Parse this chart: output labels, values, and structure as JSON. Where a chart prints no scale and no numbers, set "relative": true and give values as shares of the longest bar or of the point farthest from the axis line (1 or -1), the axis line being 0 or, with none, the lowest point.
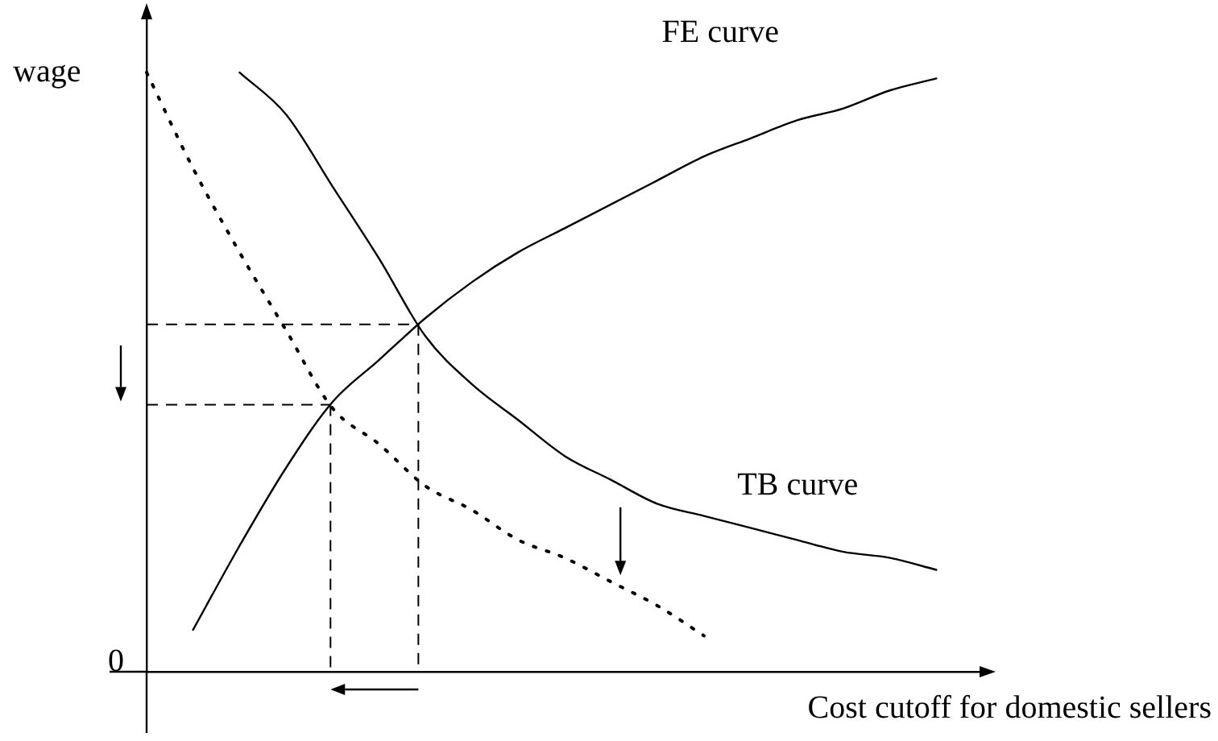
{
  "chart_data": {
    "type": "line",
    "relative": true,
    "xlabel": "Cost cutoff for domestic sellers",
    "ylabel": "wage",
    "annotations": [
      "0"
    ],
    "categories": [
      null,
      null,
      null,
      null,
      null,
      null,
      null,
      null,
      null,
      null,
      null,
      null,
      null,
      null,
      null,
      null,
      null,
      null,
      null
    ],
    "series": [
      {
        "name": "FE curve",
        "color": "#000000",
        "line_style": "solid",
        "values": [
          null,
          0.07,
          0.21,
          0.34,
          0.45,
          0.52,
          0.59,
          0.65,
          0.7,
          0.74,
          0.78,
          0.82,
          0.86,
          0.89,
          0.92,
          0.94,
          0.97,
          0.99,
          null
        ]
      },
      {
        "name": "TB curve",
        "color": "#000000",
        "line_style": "solid",
        "values": [
          null,
          null,
          1.0,
          0.93,
          0.81,
          0.69,
          0.56,
          0.48,
          0.42,
          0.36,
          0.32,
          0.28,
          0.26,
          0.24,
          0.22,
          0.2,
          0.19,
          0.17,
          null
        ]
      },
      {
        "color": "#000000",
        "line_style": "dotted",
        "values": [
          1.0,
          0.84,
          0.7,
          0.57,
          0.44,
          0.38,
          0.31,
          0.27,
          0.22,
          0.19,
          0.15,
          0.11,
          0.06,
          null,
          null,
          null,
          null,
          null,
          null
        ]
      }
    ],
    "marker": "none",
    "grid": false,
    "legend": false
  }
}
